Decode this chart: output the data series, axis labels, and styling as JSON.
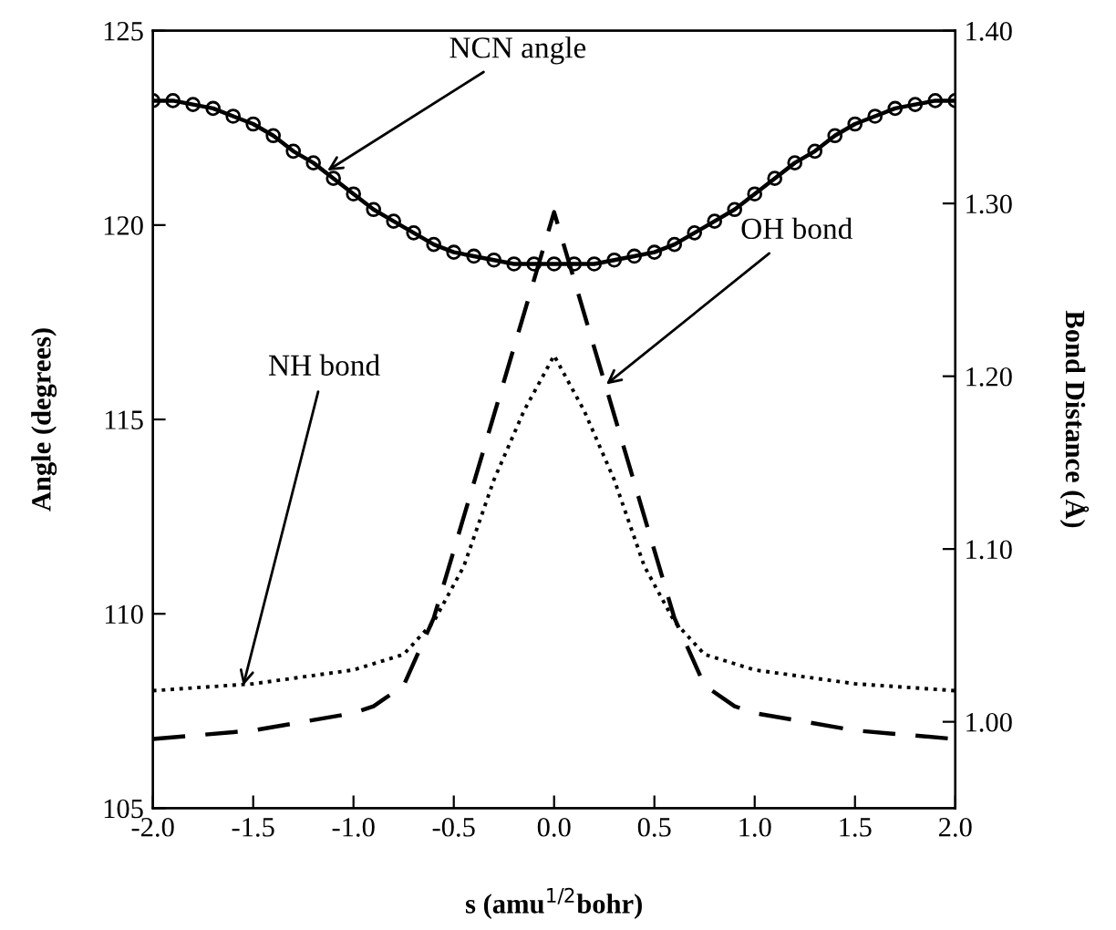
{
  "chart_data": {
    "type": "line",
    "xlabel": "s (amu$^{1/2}$bohr)",
    "ylabel": "Angle (degrees)",
    "y2label": "Bond Distance (Å)",
    "xlim": [
      -2.0,
      2.0
    ],
    "xticks": [
      {
        "value": -2.0,
        "label": "-2.0"
      },
      {
        "value": -1.5,
        "label": "-1.5"
      },
      {
        "value": -1.0,
        "label": "-1.0"
      },
      {
        "value": -0.5,
        "label": "-0.5"
      },
      {
        "value": 0.0,
        "label": "0.0"
      },
      {
        "value": 0.5,
        "label": "0.5"
      },
      {
        "value": 1.0,
        "label": "1.0"
      },
      {
        "value": 1.5,
        "label": "1.5"
      },
      {
        "value": 2.0,
        "label": "2.0"
      }
    ],
    "ylim": [
      105,
      125
    ],
    "yticks": [
      105,
      110,
      115,
      120,
      125
    ],
    "y2lim": [
      0.95,
      1.4
    ],
    "y2ticks": [
      {
        "value": 1.0,
        "label": "1.00"
      },
      {
        "value": 1.1,
        "label": "1.10"
      },
      {
        "value": 1.2,
        "label": "1.20"
      },
      {
        "value": 1.3,
        "label": "1.30"
      },
      {
        "value": 1.4,
        "label": "1.40"
      }
    ],
    "grid": false,
    "legend": false,
    "series": [
      {
        "color": "#000000",
        "marker": "circle",
        "line_style": "solid",
        "x": [
          -2.0,
          -1.9,
          -1.8,
          -1.7,
          -1.6,
          -1.5,
          -1.4,
          -1.3,
          -1.2,
          -1.1,
          -1.0,
          -0.9,
          -0.8,
          -0.7,
          -0.6,
          -0.5,
          -0.4,
          -0.3,
          -0.2,
          -0.1,
          0.0,
          0.1,
          0.2,
          0.3,
          0.4,
          0.5,
          0.6,
          0.7,
          0.8,
          0.9,
          1.0,
          1.1,
          1.2,
          1.3,
          1.4,
          1.5,
          1.6,
          1.7,
          1.8,
          1.9,
          2.0
        ],
        "values": [
          123.2,
          123.2,
          123.1,
          123.0,
          122.8,
          122.6,
          122.3,
          121.9,
          121.6,
          121.2,
          120.8,
          120.4,
          120.1,
          119.8,
          119.5,
          119.3,
          119.2,
          119.1,
          119.0,
          119.0,
          119.0,
          119.0,
          119.0,
          119.1,
          119.2,
          119.3,
          119.5,
          119.8,
          120.1,
          120.4,
          120.8,
          121.2,
          121.6,
          121.9,
          122.3,
          122.6,
          122.8,
          123.0,
          123.1,
          123.2,
          123.2
        ]
      },
      {
        "color": "#000000",
        "axis": "y2",
        "marker": "none",
        "line_style": "dashed",
        "x": [
          -2.0,
          -1.5,
          -1.0,
          -0.9,
          -0.75,
          -0.6,
          0.0,
          0.6,
          0.75,
          0.9,
          1.0,
          1.5,
          2.0
        ],
        "values": [
          0.99,
          0.995,
          1.005,
          1.009,
          1.021,
          1.06,
          1.295,
          1.06,
          1.021,
          1.009,
          1.005,
          0.995,
          0.99
        ]
      },
      {
        "color": "#000000",
        "axis": "y2",
        "marker": "none",
        "line_style": "dotted",
        "x": [
          -2.0,
          -1.5,
          -1.0,
          -0.75,
          -0.6,
          -0.45,
          -0.3,
          -0.15,
          0.0,
          0.15,
          0.3,
          0.45,
          0.6,
          0.75,
          1.0,
          1.5,
          2.0
        ],
        "values": [
          1.018,
          1.022,
          1.03,
          1.039,
          1.058,
          1.09,
          1.14,
          1.18,
          1.212,
          1.18,
          1.14,
          1.09,
          1.058,
          1.039,
          1.03,
          1.022,
          1.018
        ]
      }
    ],
    "annotations": [
      {
        "text": "NCN angle",
        "x": -1.13,
        "y": 121.4
      },
      {
        "text": "OH bond",
        "x": 0.26,
        "y": 115.9
      },
      {
        "text": "NH bond",
        "x": -1.55,
        "y": 108.15
      }
    ]
  }
}
